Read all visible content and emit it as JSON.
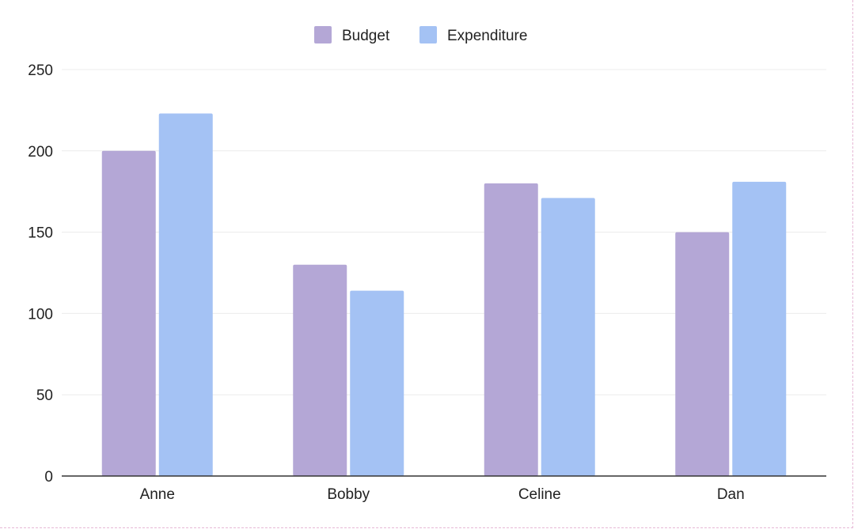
{
  "chart_data": {
    "type": "bar",
    "categories": [
      "Anne",
      "Bobby",
      "Celine",
      "Dan"
    ],
    "series": [
      {
        "name": "Budget",
        "values": [
          200,
          130,
          180,
          150
        ],
        "color": "#b4a7d6"
      },
      {
        "name": "Expenditure",
        "values": [
          223,
          114,
          171,
          181
        ],
        "color": "#a4c2f4"
      }
    ],
    "ylim": [
      0,
      250
    ],
    "yticks": [
      0,
      50,
      100,
      150,
      200,
      250
    ],
    "grid": true,
    "legend_position": "top-center",
    "title": "",
    "xlabel": "",
    "ylabel": ""
  }
}
